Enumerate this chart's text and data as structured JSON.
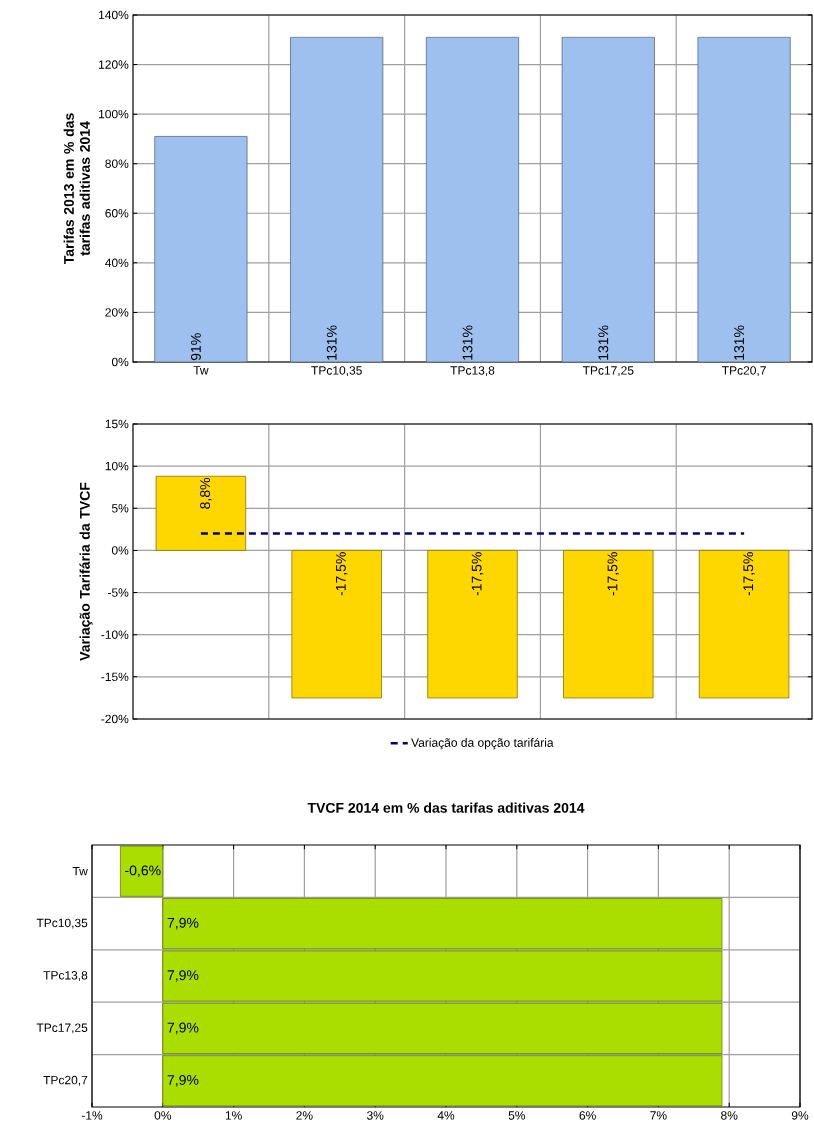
{
  "chart_data": [
    {
      "type": "bar",
      "ylabel": "Tarifas 2013 em % das tarifas aditivas 2014",
      "categories": [
        "Tw",
        "TPc10,35",
        "TPc13,8",
        "TPc17,25",
        "TPc20,7"
      ],
      "values": [
        91,
        131,
        131,
        131,
        131
      ],
      "value_labels": [
        "91%",
        "131%",
        "131%",
        "131%",
        "131%"
      ],
      "color": "#9dc0ef",
      "ylim": [
        0,
        140
      ],
      "yticks": [
        {
          "value": 0,
          "label": "0%"
        },
        {
          "value": 20,
          "label": "20%"
        },
        {
          "value": 40,
          "label": "40%"
        },
        {
          "value": 60,
          "label": "60%"
        },
        {
          "value": 80,
          "label": "80%"
        },
        {
          "value": 100,
          "label": "100%"
        },
        {
          "value": 120,
          "label": "120%"
        },
        {
          "value": 140,
          "label": "140%"
        }
      ],
      "grid": true
    },
    {
      "type": "bar",
      "ylabel": "Variação Tarifária da TVCF",
      "categories": [
        null,
        null,
        null,
        null,
        null
      ],
      "tick_labels": "y",
      "series": [
        {
          "type": "bar",
          "color": "#ffd700",
          "values": [
            8.8,
            -17.5,
            -17.5,
            -17.5,
            -17.5
          ],
          "value_labels": [
            "8,8%",
            "-17,5%",
            "-17,5%",
            "-17,5%",
            "-17,5%"
          ]
        },
        {
          "type": "line",
          "name": "Variação da opção tarifária",
          "color": "#000080",
          "line_style": "dashed",
          "values": [
            2,
            2,
            2,
            2,
            2
          ]
        }
      ],
      "ylim": [
        -20,
        15
      ],
      "yticks": [
        {
          "value": -20,
          "label": "-20%"
        },
        {
          "value": -15,
          "label": "-15%"
        },
        {
          "value": -10,
          "label": "-10%"
        },
        {
          "value": -5,
          "label": "-5%"
        },
        {
          "value": 0,
          "label": "0%"
        },
        {
          "value": 5,
          "label": "5%"
        },
        {
          "value": 10,
          "label": "10%"
        },
        {
          "value": 15,
          "label": "15%"
        }
      ],
      "grid": true,
      "legend": "bottom"
    },
    {
      "type": "bar",
      "orientation": "horizontal",
      "title": "TVCF 2014 em % das tarifas aditivas 2014",
      "categories": [
        "Tw",
        "TPc10,35",
        "TPc13,8",
        "TPc17,25",
        "TPc20,7"
      ],
      "values": [
        -0.6,
        7.9,
        7.9,
        7.9,
        7.9
      ],
      "value_labels": [
        "-0,6%",
        "7,9%",
        "7,9%",
        "7,9%",
        "7,9%"
      ],
      "color": "#aadd00",
      "xlim": [
        -1,
        9
      ],
      "xticks": [
        {
          "value": -1,
          "label": "-1%"
        },
        {
          "value": 0,
          "label": "0%"
        },
        {
          "value": 1,
          "label": "1%"
        },
        {
          "value": 2,
          "label": "2%"
        },
        {
          "value": 3,
          "label": "3%"
        },
        {
          "value": 4,
          "label": "4%"
        },
        {
          "value": 5,
          "label": "5%"
        },
        {
          "value": 6,
          "label": "6%"
        },
        {
          "value": 7,
          "label": "7%"
        },
        {
          "value": 8,
          "label": "8%"
        },
        {
          "value": 9,
          "label": "9%"
        }
      ],
      "grid": true
    }
  ]
}
